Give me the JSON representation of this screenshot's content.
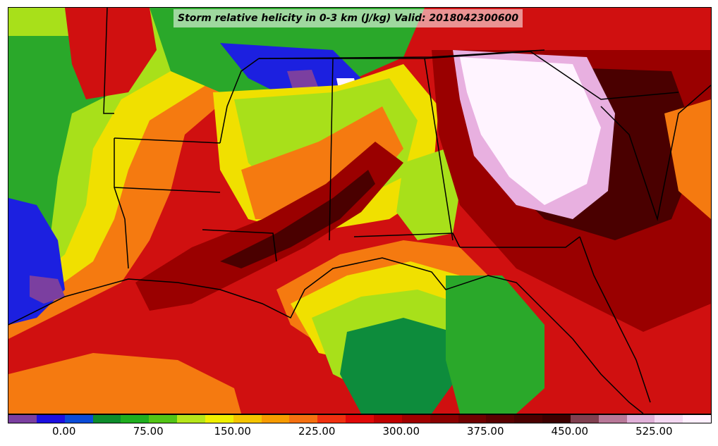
{
  "title": "Storm relative helicity in 0-3 km (J/kg) Valid: 2018042300600",
  "colorbar": {
    "min": -50,
    "max": 575,
    "step": 25,
    "colors": [
      "#7b3fa0",
      "#1c0fe0",
      "#0a4bd8",
      "#0d8c2c",
      "#1fae1f",
      "#52c416",
      "#b6e61a",
      "#f0f000",
      "#f5c400",
      "#f79b00",
      "#f57010",
      "#f03010",
      "#e00808",
      "#c00000",
      "#a00000",
      "#8a0000",
      "#700000",
      "#5a0000",
      "#4a0000",
      "#3c0000",
      "#804050",
      "#b87898",
      "#e0b0d8",
      "#f4d8f2",
      "#fff0ff"
    ],
    "tick_labels": [
      "0.00",
      "75.00",
      "150.00",
      "225.00",
      "300.00",
      "375.00",
      "450.00",
      "525.00"
    ],
    "tick_values": [
      0,
      75,
      150,
      225,
      300,
      375,
      450,
      525
    ]
  },
  "fields": {
    "base": "#d01010",
    "deep_red": "#9a0000",
    "darkest": "#4a0000",
    "orange": "#f57a10",
    "yellow": "#f0e000",
    "lime": "#a8e01a",
    "green": "#2aa82a",
    "dark_green": "#0d8c3c",
    "blue": "#1c20e0",
    "purple": "#7b3fa0",
    "pink": "#e8b0e0",
    "white": "#fff4ff"
  },
  "borders_color": "#000000"
}
